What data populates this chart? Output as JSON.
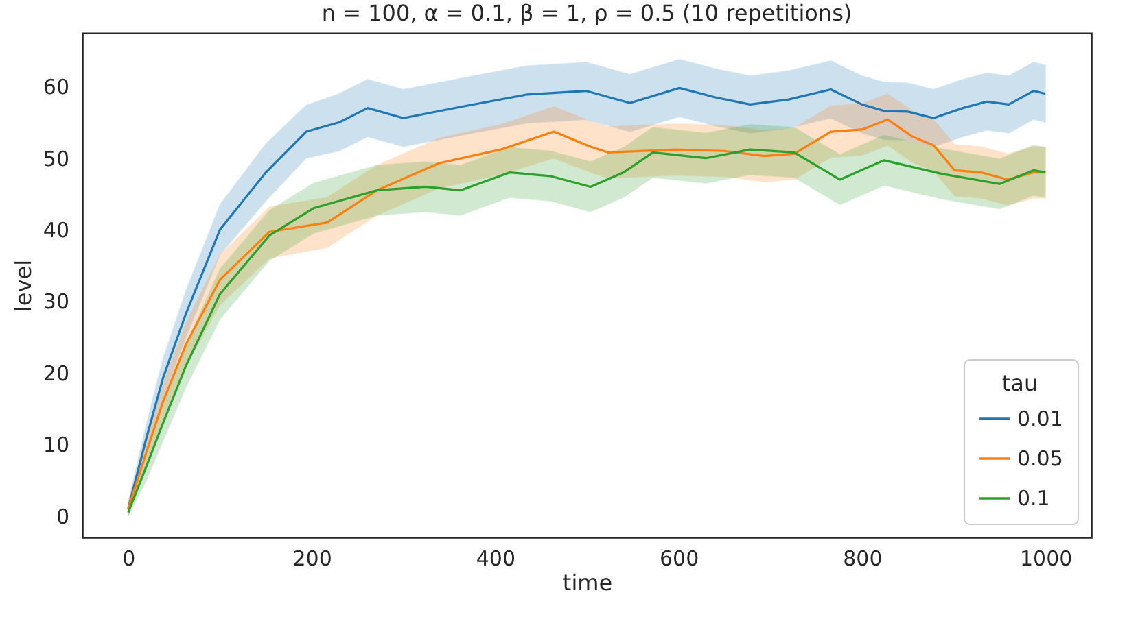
{
  "chart_data": {
    "type": "line",
    "title": "n = 100, α = 0.1, β = 1, ρ = 0.5 (10 repetitions)",
    "xlabel": "time",
    "ylabel": "level",
    "legend_title": "tau",
    "legend": "bottom right",
    "xlim": [
      -50,
      1050
    ],
    "ylim": [
      -3,
      67.5
    ],
    "xticks": [
      0,
      200,
      400,
      600,
      800,
      1000
    ],
    "yticks": [
      0,
      10,
      20,
      30,
      40,
      50,
      60
    ],
    "series": [
      {
        "name": "0.01",
        "color": "#1f77b4",
        "x": [
          0,
          20,
          38,
          63,
          100,
          150,
          194,
          230,
          261,
          300,
          368,
          435,
          475,
          499,
          547,
          601,
          640,
          678,
          720,
          766,
          800,
          824,
          850,
          878,
          910,
          936,
          960,
          987,
          1000
        ],
        "values": [
          1,
          11,
          19.3,
          28.3,
          40,
          48,
          53.7,
          55,
          57,
          55.6,
          57.3,
          58.9,
          59.2,
          59.4,
          57.7,
          59.8,
          58.5,
          57.5,
          58.2,
          59.6,
          57.5,
          56.6,
          56.5,
          55.6,
          57,
          57.9,
          57.5,
          59.4,
          59
        ],
        "lower": [
          0,
          9,
          16.5,
          25,
          36.5,
          44,
          50,
          51,
          53,
          51.6,
          53.3,
          54.9,
          55.2,
          55.4,
          53.7,
          55.8,
          54.5,
          53.5,
          54.2,
          55.6,
          53.5,
          52.6,
          52.5,
          51.6,
          53,
          53.9,
          53.5,
          55.4,
          55
        ],
        "upper": [
          2,
          13,
          22,
          31.5,
          43.5,
          52,
          57.4,
          59,
          61,
          59.6,
          61.3,
          62.9,
          63.2,
          63.4,
          61.7,
          63.8,
          62.5,
          61.5,
          62.2,
          63.6,
          61.5,
          60.6,
          60.5,
          59.6,
          61,
          61.9,
          61.5,
          63.4,
          63
        ]
      },
      {
        "name": "0.05",
        "color": "#ff7f0e",
        "x": [
          0,
          20,
          38,
          63,
          100,
          154,
          217,
          271,
          339,
          406,
          464,
          504,
          523,
          596,
          650,
          693,
          726,
          766,
          800,
          828,
          855,
          878,
          901,
          930,
          959,
          987,
          1000
        ],
        "values": [
          1,
          9,
          16,
          24,
          33,
          39.7,
          41,
          45.5,
          49.3,
          51.2,
          53.7,
          51.6,
          50.8,
          51.2,
          51,
          50.3,
          50.6,
          53.7,
          54,
          55.4,
          53,
          51.8,
          48.3,
          48,
          47,
          48,
          48
        ],
        "lower": [
          0,
          7,
          13.5,
          21,
          29.5,
          36,
          37.5,
          42,
          45.8,
          47.7,
          50,
          48,
          47.2,
          47.6,
          47.4,
          46.7,
          47,
          50.1,
          50.4,
          51.8,
          49.4,
          48.2,
          44.7,
          44.4,
          43.4,
          44.4,
          44.4
        ],
        "upper": [
          2,
          11,
          18.5,
          27,
          36.5,
          43.2,
          44.5,
          49,
          52.8,
          54.7,
          57.2,
          55.2,
          54.4,
          54.8,
          54.6,
          53.9,
          54.2,
          57.3,
          57.6,
          59,
          56.6,
          55.4,
          51.9,
          51.6,
          50.6,
          51.6,
          51.6
        ]
      },
      {
        "name": "0.1",
        "color": "#2ca02c",
        "x": [
          0,
          20,
          38,
          63,
          100,
          154,
          202,
          271,
          324,
          362,
          416,
          460,
          504,
          540,
          572,
          630,
          678,
          726,
          776,
          824,
          887,
          950,
          987,
          1000
        ],
        "values": [
          0.5,
          7,
          13,
          21,
          31,
          39.2,
          43,
          45.5,
          46,
          45.5,
          48,
          47.5,
          46,
          48,
          50.8,
          50,
          51.2,
          50.8,
          47,
          49.7,
          47.8,
          46.4,
          48.3,
          48
        ],
        "lower": [
          0,
          5,
          10.5,
          18,
          27.5,
          35.7,
          39.5,
          42,
          42.5,
          42,
          44.5,
          44,
          42.5,
          44.5,
          47.3,
          46.5,
          47.7,
          47.3,
          43.5,
          46.2,
          44.3,
          42.9,
          44.8,
          44.5
        ],
        "upper": [
          1,
          9,
          15.5,
          24,
          34.5,
          42.7,
          46.5,
          49,
          49.5,
          49,
          51.5,
          51,
          49.5,
          51.5,
          54.3,
          53.5,
          54.7,
          54.3,
          50.5,
          53.2,
          51.3,
          49.9,
          51.8,
          51.5
        ]
      }
    ]
  }
}
